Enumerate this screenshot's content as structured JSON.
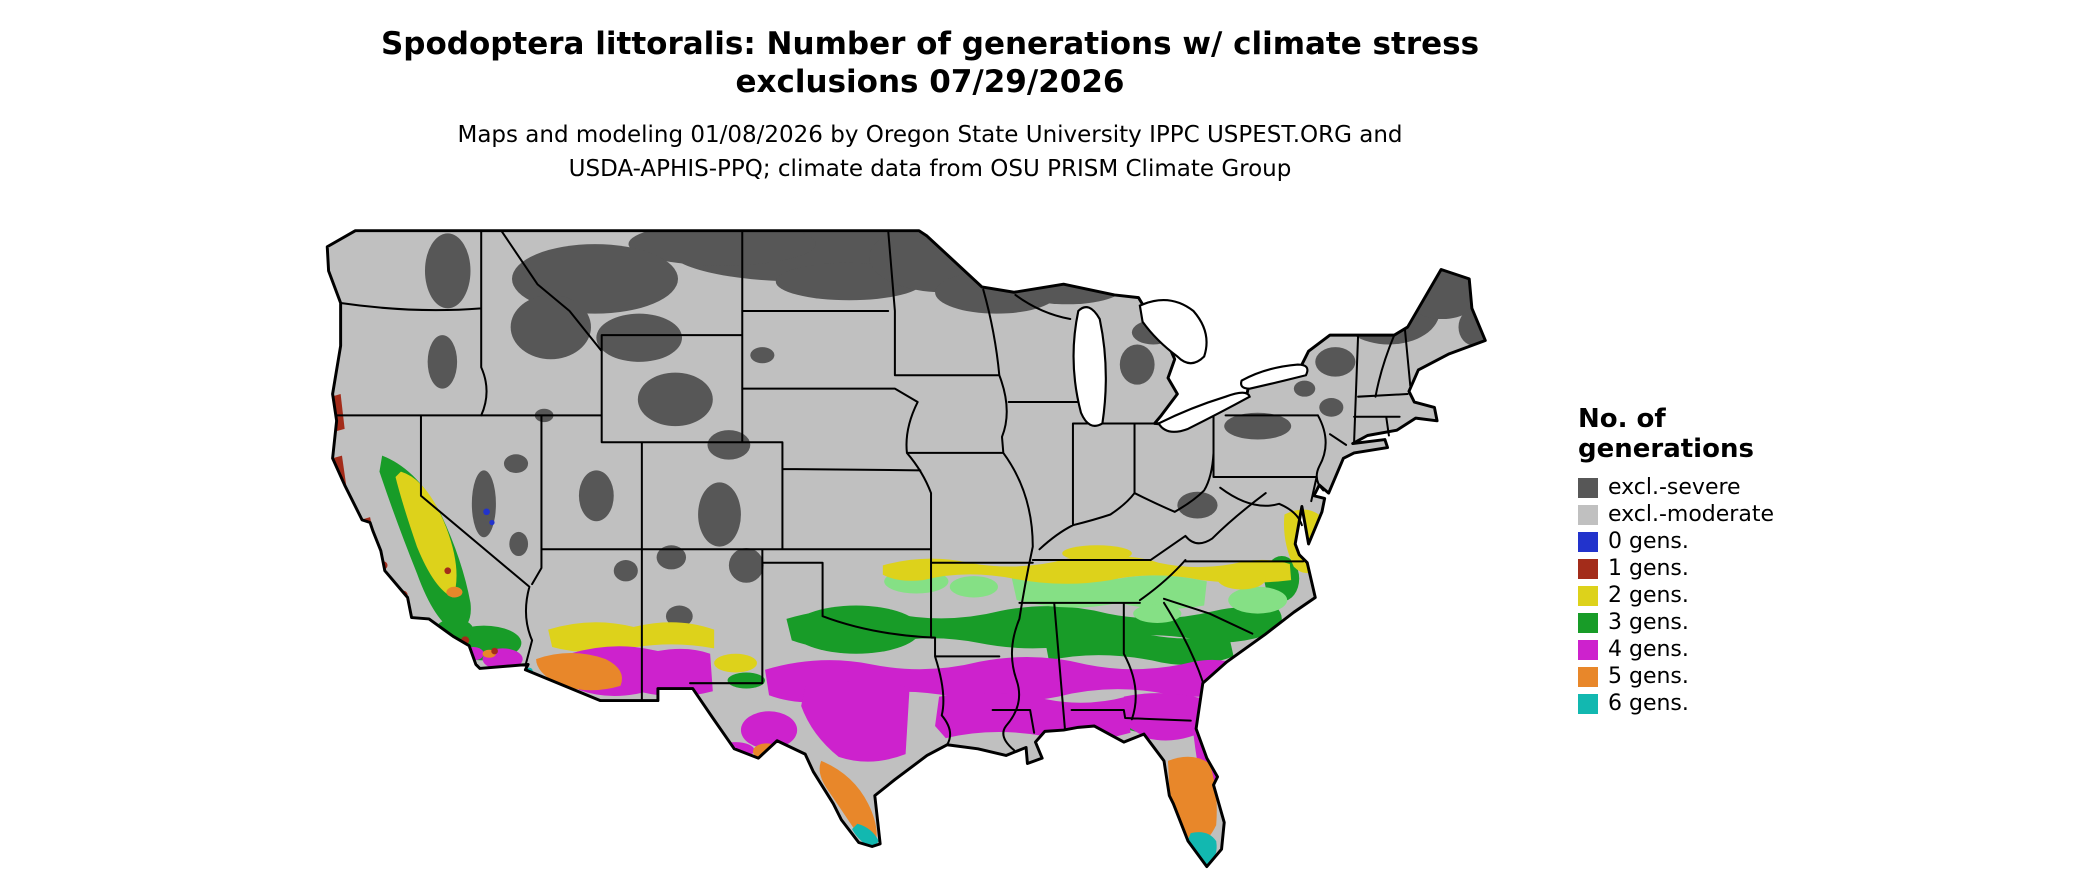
{
  "title": {
    "line1": "Spodoptera littoralis: Number of generations w/ climate stress",
    "line2": "exclusions 07/29/2026"
  },
  "subtitle": {
    "line1": "Maps and modeling 01/08/2026 by Oregon State University IPPC USPEST.ORG and",
    "line2": "USDA-APHIS-PPQ; climate data from OSU PRISM Climate Group"
  },
  "legend": {
    "title_line1": "No. of",
    "title_line2": "generations",
    "items": [
      {
        "label": "excl.-severe",
        "color": "#575757"
      },
      {
        "label": "excl.-moderate",
        "color": "#c0c0c0"
      },
      {
        "label": "0 gens.",
        "color": "#2233cc"
      },
      {
        "label": "1 gens.",
        "color": "#a32c1a"
      },
      {
        "label": "2 gens.",
        "color": "#ddd21b"
      },
      {
        "label": "3 gens.",
        "color": "#189c28"
      },
      {
        "label": "4 gens.",
        "color": "#cd22cd"
      },
      {
        "label": "5 gens.",
        "color": "#e8872a"
      },
      {
        "label": "6 gens.",
        "color": "#12b8b0"
      }
    ]
  },
  "map": {
    "region": "Continental United States",
    "blend_light_green": "#85e085",
    "water_color": "#ffffff",
    "border_color": "#000000"
  }
}
